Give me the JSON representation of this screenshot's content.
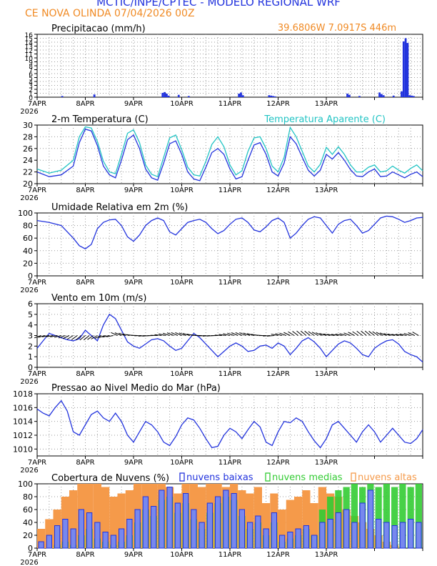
{
  "header": {
    "title": "MCTIC/INPE/CPTEC - MODELO REGIONAL WRF",
    "location_run": "CE NOVA OLINDA        07/04/2026 00Z",
    "coords": "39.6806W 7.0917S 446m"
  },
  "colors": {
    "blue": "#2233dd",
    "cyan": "#22c4c4",
    "orange": "#f59a4a",
    "green": "#33cc33",
    "title_orange": "#f08a24",
    "grid": "#9a9a9a"
  },
  "x_ticks": [
    "7APR",
    "8APR",
    "9APR",
    "10APR",
    "11APR",
    "12APR",
    "13APR"
  ],
  "year_label": "2026",
  "chart_data": [
    {
      "type": "bar",
      "title": "Precipitacao (mm/h)",
      "ylim": [
        0,
        16
      ],
      "yticks": [
        "0",
        "1",
        "2",
        "3",
        "4",
        "5",
        "6",
        "7",
        "8",
        "9",
        "10",
        "11",
        "12",
        "13",
        "14",
        "15",
        "16"
      ],
      "x_hours": [
        12,
        28,
        62,
        63,
        64,
        65,
        70,
        75,
        100,
        101,
        102,
        115,
        116,
        117,
        118,
        154,
        155,
        160,
        170,
        171,
        172,
        177,
        185,
        186,
        187
      ],
      "values": [
        0.3,
        0.7,
        1.1,
        1.3,
        0.9,
        0.4,
        0.6,
        0.3,
        0.9,
        1.2,
        0.5,
        0.5,
        0.4,
        0.3,
        0.2,
        0.9,
        0.6,
        0.3,
        1.2,
        0.8,
        0.5,
        0.4,
        0.5,
        0.4,
        0.3
      ]
    },
    {
      "type": "line",
      "title": "2-m Temperatura (C)",
      "ylim": [
        20,
        30
      ],
      "yticks": [
        "20",
        "22",
        "24",
        "26",
        "28",
        "30"
      ],
      "series": [
        {
          "name": "2-m Temperatura (C)",
          "x": [
            0,
            6,
            12,
            18,
            21,
            24,
            27,
            30,
            33,
            36,
            39,
            42,
            45,
            48,
            51,
            54,
            57,
            60,
            63,
            66,
            69,
            72,
            75,
            78,
            81,
            84,
            87,
            90,
            93,
            96,
            99,
            102,
            105,
            108,
            111,
            114,
            117,
            120,
            123,
            126,
            129,
            132,
            135,
            138,
            141,
            144,
            147,
            150,
            153,
            156,
            159,
            162,
            165,
            168,
            171,
            174,
            177,
            180,
            183,
            186,
            189,
            192
          ],
          "values": [
            22.0,
            21.2,
            21.5,
            23.0,
            27.0,
            29.3,
            29.0,
            26.5,
            23.0,
            21.5,
            21.0,
            24.0,
            27.5,
            28.3,
            26.0,
            22.5,
            21.0,
            20.6,
            23.5,
            26.8,
            27.3,
            25.0,
            22.0,
            20.8,
            20.5,
            22.8,
            25.3,
            26.0,
            25.0,
            22.5,
            20.8,
            21.2,
            24.0,
            26.6,
            27.0,
            25.0,
            22.0,
            21.3,
            23.5,
            28.0,
            26.8,
            24.5,
            22.3,
            21.3,
            22.3,
            25.0,
            24.2,
            25.3,
            24.0,
            22.4,
            21.3,
            21.2,
            22.0,
            22.5,
            21.2,
            21.3,
            22.0,
            21.5,
            21.0,
            21.6,
            22.0,
            21.2
          ]
        },
        {
          "name": "Temperatura Aparente (C)",
          "x": [
            0,
            6,
            12,
            18,
            21,
            24,
            27,
            30,
            33,
            36,
            39,
            42,
            45,
            48,
            51,
            54,
            57,
            60,
            63,
            66,
            69,
            72,
            75,
            78,
            81,
            84,
            87,
            90,
            93,
            96,
            99,
            102,
            105,
            108,
            111,
            114,
            117,
            120,
            123,
            126,
            129,
            132,
            135,
            138,
            141,
            144,
            147,
            150,
            153,
            156,
            159,
            162,
            165,
            168,
            171,
            174,
            177,
            180,
            183,
            186,
            189,
            192
          ],
          "values": [
            22.5,
            21.8,
            22.3,
            24.0,
            28.0,
            29.7,
            29.5,
            27.2,
            23.8,
            22.0,
            21.7,
            25.0,
            28.6,
            29.2,
            27.0,
            23.2,
            21.6,
            21.2,
            24.5,
            27.8,
            28.3,
            25.8,
            22.8,
            21.5,
            21.3,
            23.8,
            26.7,
            28.0,
            26.3,
            23.2,
            21.5,
            22.2,
            25.5,
            27.8,
            28.0,
            26.0,
            23.0,
            22.0,
            24.5,
            29.6,
            28.0,
            25.5,
            23.0,
            22.0,
            23.3,
            26.2,
            25.0,
            26.3,
            25.0,
            23.2,
            22.0,
            22.0,
            22.8,
            23.2,
            22.0,
            22.2,
            23.0,
            22.3,
            21.8,
            22.6,
            23.2,
            22.2
          ]
        }
      ]
    },
    {
      "type": "line",
      "title": "Umidade Relativa em 2m (%)",
      "ylim": [
        0,
        100
      ],
      "yticks": [
        "0",
        "20",
        "40",
        "60",
        "80",
        "100"
      ],
      "series": [
        {
          "name": "Umidade Relativa em 2m (%)",
          "x": [
            0,
            6,
            12,
            18,
            21,
            24,
            27,
            30,
            33,
            36,
            39,
            42,
            45,
            48,
            51,
            54,
            57,
            60,
            63,
            66,
            69,
            72,
            75,
            78,
            81,
            84,
            87,
            90,
            93,
            96,
            99,
            102,
            105,
            108,
            111,
            114,
            117,
            120,
            123,
            126,
            129,
            132,
            135,
            138,
            141,
            144,
            147,
            150,
            153,
            156,
            159,
            162,
            165,
            168,
            171,
            174,
            177,
            180,
            183,
            186,
            189,
            192
          ],
          "values": [
            88,
            85,
            80,
            60,
            48,
            43,
            50,
            75,
            85,
            89,
            90,
            80,
            62,
            55,
            65,
            80,
            88,
            92,
            88,
            70,
            65,
            75,
            85,
            88,
            90,
            85,
            75,
            67,
            72,
            82,
            90,
            92,
            85,
            73,
            70,
            78,
            88,
            92,
            85,
            60,
            68,
            80,
            90,
            94,
            92,
            80,
            68,
            82,
            88,
            90,
            80,
            68,
            72,
            82,
            92,
            95,
            94,
            90,
            85,
            88,
            92,
            93
          ]
        }
      ]
    },
    {
      "type": "line",
      "title": "Vento em 10m (m/s)",
      "ylim": [
        0,
        6
      ],
      "yticks": [
        "0",
        "1",
        "2",
        "3",
        "4",
        "5",
        "6"
      ],
      "series": [
        {
          "name": "Vento em 10m (m/s)",
          "x": [
            0,
            3,
            6,
            9,
            12,
            15,
            18,
            21,
            24,
            27,
            30,
            33,
            36,
            39,
            42,
            45,
            48,
            51,
            54,
            57,
            60,
            63,
            66,
            69,
            72,
            75,
            78,
            81,
            84,
            87,
            90,
            93,
            96,
            99,
            102,
            105,
            108,
            111,
            114,
            117,
            120,
            123,
            126,
            129,
            132,
            135,
            138,
            141,
            144,
            147,
            150,
            153,
            156,
            159,
            162,
            165,
            168,
            171,
            174,
            177,
            180,
            183,
            186,
            189,
            192
          ],
          "values": [
            1.8,
            2.5,
            3.2,
            3.0,
            2.8,
            2.6,
            2.5,
            2.7,
            3.5,
            3.0,
            2.5,
            4.0,
            5.0,
            4.6,
            3.5,
            2.4,
            2.0,
            1.8,
            2.2,
            2.6,
            2.7,
            2.5,
            2.0,
            1.6,
            1.8,
            2.5,
            3.2,
            2.8,
            2.2,
            1.6,
            1.0,
            1.5,
            2.0,
            2.3,
            2.0,
            1.5,
            1.6,
            2.0,
            2.1,
            1.8,
            2.3,
            2.0,
            1.2,
            1.8,
            2.5,
            2.8,
            2.4,
            1.8,
            1.0,
            1.6,
            2.2,
            2.5,
            2.3,
            1.8,
            1.2,
            1.0,
            1.8,
            2.2,
            2.5,
            2.6,
            2.2,
            1.5,
            1.2,
            1.0,
            0.5
          ]
        }
      ]
    },
    {
      "type": "line",
      "title": "Pressao ao Nivel Medio do Mar (hPa)",
      "ylim": [
        1009,
        1018
      ],
      "yticks": [
        "1010",
        "1012",
        "1014",
        "1016",
        "1018"
      ],
      "series": [
        {
          "name": "Pressao ao Nivel Medio do Mar (hPa)",
          "x": [
            0,
            3,
            6,
            9,
            12,
            15,
            18,
            21,
            24,
            27,
            30,
            33,
            36,
            39,
            42,
            45,
            48,
            51,
            54,
            57,
            60,
            63,
            66,
            69,
            72,
            75,
            78,
            81,
            84,
            87,
            90,
            93,
            96,
            99,
            102,
            105,
            108,
            111,
            114,
            117,
            120,
            123,
            126,
            129,
            132,
            135,
            138,
            141,
            144,
            147,
            150,
            153,
            156,
            159,
            162,
            165,
            168,
            171,
            174,
            177,
            180,
            183,
            186,
            189,
            192
          ],
          "values": [
            1015.8,
            1015.2,
            1014.8,
            1016.0,
            1017.0,
            1015.5,
            1012.5,
            1012.0,
            1013.5,
            1015.0,
            1015.5,
            1014.5,
            1014.0,
            1015.2,
            1014.0,
            1012.0,
            1011.0,
            1012.5,
            1014.0,
            1013.5,
            1012.5,
            1011.0,
            1010.5,
            1011.8,
            1013.5,
            1014.5,
            1014.2,
            1013.0,
            1011.5,
            1010.2,
            1010.4,
            1012.0,
            1013.0,
            1012.5,
            1011.5,
            1012.8,
            1014.0,
            1013.2,
            1011.0,
            1010.5,
            1012.5,
            1014.0,
            1013.8,
            1014.5,
            1014.0,
            1012.5,
            1011.2,
            1010.2,
            1011.5,
            1013.5,
            1014.0,
            1013.0,
            1012.0,
            1011.0,
            1012.5,
            1013.5,
            1012.5,
            1011.0,
            1012.0,
            1013.0,
            1012.0,
            1011.0,
            1010.8,
            1011.5,
            1012.8
          ]
        }
      ]
    },
    {
      "type": "bar",
      "title": "Cobertura de Nuvens (%)",
      "ylim": [
        0,
        100
      ],
      "yticks": [
        "0",
        "20",
        "40",
        "60",
        "80",
        "100"
      ],
      "series": [
        {
          "name": "nuvens baixas",
          "x": [
            0,
            4,
            8,
            12,
            16,
            20,
            24,
            28,
            32,
            36,
            40,
            44,
            48,
            52,
            56,
            60,
            64,
            68,
            72,
            76,
            80,
            84,
            88,
            92,
            96,
            100,
            104,
            108,
            112,
            116,
            120,
            124,
            128,
            132,
            136,
            140,
            144,
            148,
            152,
            156,
            160,
            164,
            168,
            172,
            176,
            180,
            184,
            188
          ],
          "values": [
            10,
            20,
            35,
            45,
            30,
            60,
            55,
            40,
            25,
            20,
            30,
            45,
            60,
            80,
            65,
            90,
            95,
            70,
            85,
            60,
            40,
            70,
            80,
            90,
            85,
            60,
            40,
            50,
            30,
            55,
            20,
            25,
            30,
            35,
            20,
            40,
            45,
            55,
            60,
            40,
            70,
            90,
            45,
            40,
            35,
            40,
            45,
            40
          ]
        },
        {
          "name": "nuvens medias",
          "x": [
            0,
            4,
            8,
            12,
            16,
            20,
            24,
            28,
            32,
            36,
            40,
            44,
            48,
            52,
            56,
            60,
            64,
            68,
            72,
            76,
            80,
            84,
            88,
            92,
            96,
            100,
            104,
            108,
            112,
            116,
            120,
            124,
            128,
            132,
            136,
            140,
            144,
            148,
            152,
            156,
            160,
            164,
            168,
            172,
            176,
            180,
            184,
            188
          ],
          "values": [
            0,
            0,
            5,
            10,
            5,
            20,
            30,
            15,
            10,
            5,
            10,
            20,
            40,
            60,
            50,
            75,
            80,
            55,
            70,
            45,
            30,
            55,
            70,
            80,
            75,
            50,
            30,
            40,
            20,
            40,
            10,
            15,
            20,
            30,
            20,
            60,
            80,
            90,
            95,
            100,
            95,
            100,
            95,
            100,
            95,
            100,
            95,
            100
          ]
        },
        {
          "name": "nuvens altas",
          "x": [
            0,
            4,
            8,
            12,
            16,
            20,
            24,
            28,
            32,
            36,
            40,
            44,
            48,
            52,
            56,
            60,
            64,
            68,
            72,
            76,
            80,
            84,
            88,
            92,
            96,
            100,
            104,
            108,
            112,
            116,
            120,
            124,
            128,
            132,
            136,
            140,
            144,
            148,
            152,
            156,
            160,
            164,
            168,
            172,
            176,
            180,
            184,
            188
          ],
          "values": [
            30,
            45,
            60,
            80,
            90,
            100,
            100,
            100,
            95,
            80,
            85,
            90,
            100,
            100,
            100,
            100,
            95,
            85,
            100,
            100,
            95,
            100,
            100,
            95,
            100,
            90,
            85,
            95,
            70,
            85,
            60,
            75,
            80,
            90,
            70,
            95,
            85,
            80,
            60,
            50,
            40,
            30,
            20,
            10,
            5,
            0,
            0,
            0
          ]
        }
      ]
    }
  ]
}
